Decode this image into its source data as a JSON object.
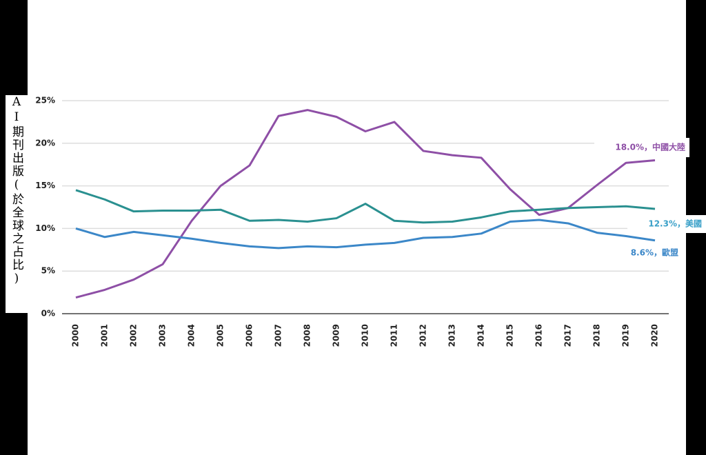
{
  "chart_data": {
    "type": "line",
    "y_label": "AI期刊出版(於全球之占比)",
    "categories": [
      "2000",
      "2001",
      "2002",
      "2003",
      "2004",
      "2005",
      "2006",
      "2007",
      "2008",
      "2009",
      "2010",
      "2011",
      "2012",
      "2013",
      "2014",
      "2015",
      "2016",
      "2017",
      "2018",
      "2019",
      "2020"
    ],
    "series": [
      {
        "name": "中國大陸",
        "color": "#8e4fa6",
        "values": [
          1.9,
          2.8,
          4.0,
          5.8,
          10.9,
          15.0,
          17.4,
          23.2,
          23.9,
          23.1,
          21.4,
          22.5,
          19.1,
          18.6,
          18.3,
          14.6,
          11.6,
          12.4,
          15.1,
          17.7,
          18.0
        ]
      },
      {
        "name": "美國",
        "color": "#2a9090",
        "values": [
          14.5,
          13.4,
          12.0,
          12.1,
          12.1,
          12.2,
          10.9,
          11.0,
          10.8,
          11.2,
          12.9,
          10.9,
          10.7,
          10.8,
          11.3,
          12.0,
          12.2,
          12.4,
          12.5,
          12.6,
          12.3
        ]
      },
      {
        "name": "歐盟",
        "color": "#3b87c8",
        "values": [
          10.0,
          9.0,
          9.6,
          9.2,
          8.8,
          8.3,
          7.9,
          7.7,
          7.9,
          7.8,
          8.1,
          8.3,
          8.9,
          9.0,
          9.4,
          10.8,
          11.0,
          10.6,
          9.5,
          9.1,
          8.6
        ]
      }
    ],
    "annotations": [
      {
        "text": "18.0%，中國大陸",
        "color": "#8e4fa6"
      },
      {
        "text": "12.3%，美國",
        "color": "#3aa0c8"
      },
      {
        "text": "8.6%，歐盟",
        "color": "#3b87c8"
      }
    ],
    "ylim": [
      0,
      25
    ],
    "yticks": [
      {
        "value": 0,
        "label": "0%"
      },
      {
        "value": 5,
        "label": "5%"
      },
      {
        "value": 10,
        "label": "10%"
      },
      {
        "value": 15,
        "label": "15%"
      },
      {
        "value": 20,
        "label": "20%"
      },
      {
        "value": 25,
        "label": "25%"
      }
    ],
    "grid": true
  }
}
